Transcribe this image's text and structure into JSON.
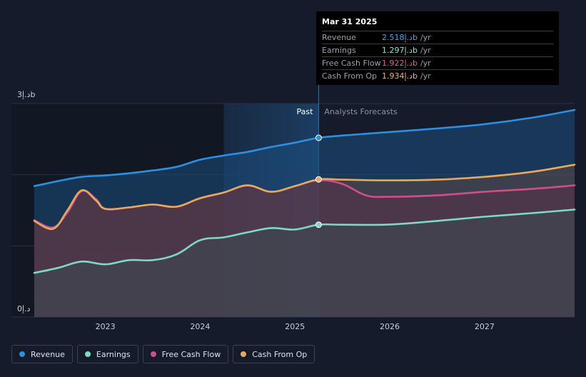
{
  "chart_data": {
    "type": "area",
    "x_unit": "year",
    "xlim": [
      2022.25,
      2027.95
    ],
    "ylim": [
      0,
      3
    ],
    "y_tick_labels": [
      "3د.إb",
      "0د.إ"
    ],
    "x_tick_labels": [
      "2023",
      "2024",
      "2025",
      "2026",
      "2027"
    ],
    "x_ticks": [
      2023,
      2024,
      2025,
      2026,
      2027
    ],
    "past_label": "Past",
    "forecast_label": "Analysts Forecasts",
    "divider_x": 2025.25,
    "shaded_start_x": 2024.25,
    "series": [
      {
        "name": "Revenue",
        "color": "#2d8fe0",
        "x": [
          2022.25,
          2022.5,
          2022.75,
          2023.0,
          2023.25,
          2023.5,
          2023.75,
          2024.0,
          2024.25,
          2024.5,
          2024.75,
          2025.0,
          2025.25,
          2025.5,
          2026.0,
          2026.5,
          2027.0,
          2027.5,
          2027.95
        ],
        "y": [
          1.84,
          1.91,
          1.97,
          1.99,
          2.02,
          2.06,
          2.11,
          2.21,
          2.27,
          2.32,
          2.39,
          2.45,
          2.518,
          2.55,
          2.6,
          2.65,
          2.71,
          2.8,
          2.91
        ]
      },
      {
        "name": "Earnings",
        "color": "#7fd8c2",
        "x": [
          2022.25,
          2022.5,
          2022.75,
          2023.0,
          2023.25,
          2023.5,
          2023.75,
          2024.0,
          2024.25,
          2024.5,
          2024.75,
          2025.0,
          2025.25,
          2025.5,
          2026.0,
          2026.5,
          2027.0,
          2027.5,
          2027.95
        ],
        "y": [
          0.62,
          0.69,
          0.78,
          0.74,
          0.8,
          0.8,
          0.88,
          1.08,
          1.12,
          1.19,
          1.25,
          1.23,
          1.297,
          1.297,
          1.3,
          1.35,
          1.41,
          1.46,
          1.51
        ]
      },
      {
        "name": "Free Cash Flow",
        "color": "#d04e8e",
        "x": [
          2022.25,
          2022.45,
          2022.6,
          2022.75,
          2022.9,
          2023.0,
          2023.25,
          2023.5,
          2023.75,
          2024.0,
          2024.25,
          2024.5,
          2024.75,
          2025.0,
          2025.25,
          2025.5,
          2025.75,
          2026.0,
          2026.5,
          2027.0,
          2027.5,
          2027.95
        ],
        "y": [
          1.36,
          1.26,
          1.47,
          1.77,
          1.66,
          1.52,
          1.54,
          1.58,
          1.55,
          1.67,
          1.75,
          1.85,
          1.76,
          1.84,
          1.922,
          1.87,
          1.71,
          1.69,
          1.71,
          1.76,
          1.8,
          1.85
        ]
      },
      {
        "name": "Cash From Op",
        "color": "#e8a95c",
        "x": [
          2022.25,
          2022.45,
          2022.6,
          2022.75,
          2022.9,
          2023.0,
          2023.25,
          2023.5,
          2023.75,
          2024.0,
          2024.25,
          2024.5,
          2024.75,
          2025.0,
          2025.25,
          2025.5,
          2026.0,
          2026.5,
          2027.0,
          2027.5,
          2027.95
        ],
        "y": [
          1.35,
          1.24,
          1.5,
          1.78,
          1.64,
          1.52,
          1.54,
          1.58,
          1.55,
          1.67,
          1.75,
          1.85,
          1.76,
          1.84,
          1.934,
          1.93,
          1.92,
          1.93,
          1.97,
          2.04,
          2.14
        ]
      }
    ],
    "tooltip": {
      "date": "Mar 31 2025",
      "rows": [
        {
          "label": "Revenue",
          "value": "2.518د.إb",
          "unit": "/yr",
          "color": "#4aa3f0"
        },
        {
          "label": "Earnings",
          "value": "1.297د.إb",
          "unit": "/yr",
          "color": "#8fe3cf"
        },
        {
          "label": "Free Cash Flow",
          "value": "1.922د.إb",
          "unit": "/yr",
          "color": "#e25c9e"
        },
        {
          "label": "Cash From Op",
          "value": "1.934د.إb",
          "unit": "/yr",
          "color": "#f0b36a"
        }
      ]
    }
  },
  "legend": [
    {
      "label": "Revenue",
      "color": "#2d8fe0"
    },
    {
      "label": "Earnings",
      "color": "#7fd8c2"
    },
    {
      "label": "Free Cash Flow",
      "color": "#d04e8e"
    },
    {
      "label": "Cash From Op",
      "color": "#e8a95c"
    }
  ]
}
